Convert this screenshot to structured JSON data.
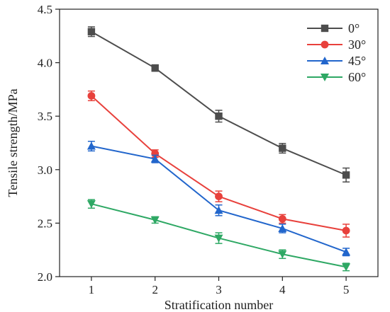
{
  "chart_data": {
    "type": "line",
    "title": "",
    "xlabel": "Stratification number",
    "ylabel": "Tensile strength/MPa",
    "x": [
      1,
      2,
      3,
      4,
      5
    ],
    "xlim": [
      0.5,
      5.5
    ],
    "ylim": [
      2.0,
      4.5
    ],
    "yticks": [
      "2.0",
      "2.5",
      "3.0",
      "3.5",
      "4.0",
      "4.5"
    ],
    "xticks": [
      "1",
      "2",
      "3",
      "4",
      "5"
    ],
    "grid": false,
    "legend_position": "top-right",
    "series": [
      {
        "name": "0°",
        "color": "#4d4d4d",
        "marker": "square",
        "values": [
          4.29,
          3.95,
          3.5,
          3.2,
          2.95
        ],
        "errors": [
          0.045,
          0.03,
          0.055,
          0.045,
          0.065
        ]
      },
      {
        "name": "30°",
        "color": "#e8413c",
        "marker": "circle",
        "values": [
          3.69,
          3.15,
          2.75,
          2.54,
          2.43
        ],
        "errors": [
          0.045,
          0.035,
          0.05,
          0.04,
          0.06
        ]
      },
      {
        "name": "45°",
        "color": "#2266cc",
        "marker": "triangle-up",
        "values": [
          3.22,
          3.1,
          2.62,
          2.45,
          2.23
        ],
        "errors": [
          0.045,
          0.035,
          0.05,
          0.04,
          0.035
        ]
      },
      {
        "name": "60°",
        "color": "#2ea864",
        "marker": "triangle-down",
        "values": [
          2.68,
          2.53,
          2.36,
          2.21,
          2.09
        ],
        "errors": [
          0.04,
          0.03,
          0.05,
          0.04,
          0.035
        ]
      }
    ]
  }
}
